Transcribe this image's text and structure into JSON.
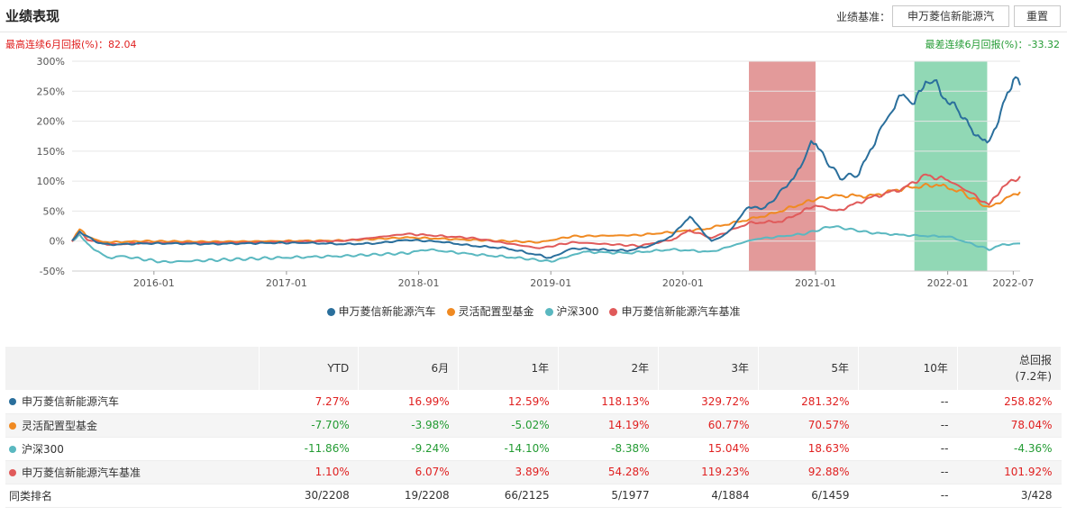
{
  "header": {
    "title": "业绩表现",
    "benchmark_label": "业绩基准：",
    "benchmark_value": "申万菱信新能源汽",
    "reset_label": "重置"
  },
  "stats": {
    "best": "最高连续6月回报(%)：82.04",
    "worst": "最差连续6月回报(%)：-33.32"
  },
  "colors": {
    "fund": "#2a6f9c",
    "flex": "#f08a22",
    "hs300": "#5ab8c0",
    "bench": "#e05a5a",
    "up": "#e02020",
    "down": "#239b33",
    "best_band": "#d97878",
    "worst_band": "#6ccb9c"
  },
  "chart_data": {
    "type": "line",
    "ylim": [
      -50,
      300
    ],
    "yticks": [
      "300%",
      "250%",
      "200%",
      "150%",
      "100%",
      "50%",
      "0%",
      "-50%"
    ],
    "yvalues": [
      300,
      250,
      200,
      150,
      100,
      50,
      0,
      -50
    ],
    "xlim": [
      "2015-05-20",
      "2022-07-20"
    ],
    "xtick_labels": [
      "2016-01",
      "2017-01",
      "2018-01",
      "2019-01",
      "2020-01",
      "2021-01",
      "2022-01",
      "2022-07"
    ],
    "xtick_dates": [
      "2016-01-01",
      "2017-01-01",
      "2018-01-01",
      "2019-01-01",
      "2020-01-01",
      "2021-01-01",
      "2022-01-01",
      "2022-07-01"
    ],
    "highlight_bands": [
      {
        "kind": "best",
        "start": "2020-07-01",
        "end": "2021-01-01"
      },
      {
        "kind": "worst",
        "start": "2021-10-01",
        "end": "2022-04-20"
      }
    ],
    "series": [
      {
        "name": "申万菱信新能源汽车",
        "color_key": "fund",
        "points": [
          [
            "2015-05-20",
            0
          ],
          [
            "2015-06-10",
            15
          ],
          [
            "2015-07-01",
            8
          ],
          [
            "2015-08-01",
            -3
          ],
          [
            "2015-09-01",
            -6
          ],
          [
            "2015-12-01",
            -4
          ],
          [
            "2016-03-01",
            -4
          ],
          [
            "2016-06-01",
            -5
          ],
          [
            "2016-09-01",
            -4
          ],
          [
            "2016-12-01",
            -3
          ],
          [
            "2017-03-01",
            -3
          ],
          [
            "2017-06-01",
            -5
          ],
          [
            "2017-09-01",
            -4
          ],
          [
            "2017-12-01",
            2
          ],
          [
            "2018-03-01",
            -1
          ],
          [
            "2018-06-01",
            -8
          ],
          [
            "2018-09-01",
            -12
          ],
          [
            "2018-11-01",
            -20
          ],
          [
            "2019-01-01",
            -28
          ],
          [
            "2019-03-01",
            -12
          ],
          [
            "2019-05-01",
            -14
          ],
          [
            "2019-08-01",
            -16
          ],
          [
            "2019-10-01",
            -8
          ],
          [
            "2019-12-01",
            8
          ],
          [
            "2020-01-20",
            42
          ],
          [
            "2020-02-15",
            22
          ],
          [
            "2020-03-20",
            0
          ],
          [
            "2020-05-01",
            12
          ],
          [
            "2020-07-01",
            58
          ],
          [
            "2020-08-15",
            55
          ],
          [
            "2020-10-01",
            85
          ],
          [
            "2020-11-20",
            120
          ],
          [
            "2020-12-20",
            168
          ],
          [
            "2021-01-15",
            148
          ],
          [
            "2021-03-10",
            105
          ],
          [
            "2021-05-01",
            112
          ],
          [
            "2021-06-20",
            175
          ],
          [
            "2021-08-01",
            220
          ],
          [
            "2021-09-01",
            245
          ],
          [
            "2021-10-01",
            228
          ],
          [
            "2021-11-01",
            268
          ],
          [
            "2021-12-01",
            262
          ],
          [
            "2022-01-01",
            232
          ],
          [
            "2022-02-01",
            218
          ],
          [
            "2022-03-01",
            192
          ],
          [
            "2022-04-20",
            160
          ],
          [
            "2022-05-15",
            195
          ],
          [
            "2022-06-15",
            245
          ],
          [
            "2022-07-01",
            272
          ],
          [
            "2022-07-20",
            260
          ]
        ]
      },
      {
        "name": "灵活配置型基金",
        "color_key": "flex",
        "points": [
          [
            "2015-05-20",
            0
          ],
          [
            "2015-06-10",
            20
          ],
          [
            "2015-07-01",
            8
          ],
          [
            "2015-08-01",
            0
          ],
          [
            "2015-09-01",
            -2
          ],
          [
            "2015-12-01",
            0
          ],
          [
            "2016-06-01",
            -1
          ],
          [
            "2016-12-01",
            0
          ],
          [
            "2017-06-01",
            1
          ],
          [
            "2017-12-01",
            6
          ],
          [
            "2018-06-01",
            2
          ],
          [
            "2018-12-01",
            -2
          ],
          [
            "2019-03-01",
            8
          ],
          [
            "2019-09-01",
            10
          ],
          [
            "2019-12-01",
            15
          ],
          [
            "2020-03-01",
            20
          ],
          [
            "2020-06-01",
            32
          ],
          [
            "2020-09-01",
            45
          ],
          [
            "2021-01-01",
            70
          ],
          [
            "2021-03-01",
            76
          ],
          [
            "2021-06-01",
            75
          ],
          [
            "2021-09-01",
            88
          ],
          [
            "2021-12-01",
            94
          ],
          [
            "2022-02-01",
            84
          ],
          [
            "2022-04-25",
            55
          ],
          [
            "2022-06-01",
            68
          ],
          [
            "2022-07-20",
            82
          ]
        ]
      },
      {
        "name": "沪深300",
        "color_key": "hs300",
        "points": [
          [
            "2015-05-20",
            0
          ],
          [
            "2015-06-10",
            10
          ],
          [
            "2015-07-01",
            -5
          ],
          [
            "2015-08-25",
            -28
          ],
          [
            "2015-10-01",
            -25
          ],
          [
            "2016-01-28",
            -35
          ],
          [
            "2016-06-01",
            -32
          ],
          [
            "2016-12-01",
            -28
          ],
          [
            "2017-06-01",
            -25
          ],
          [
            "2017-12-01",
            -20
          ],
          [
            "2018-01-25",
            -14
          ],
          [
            "2018-06-01",
            -22
          ],
          [
            "2018-10-01",
            -28
          ],
          [
            "2019-01-03",
            -34
          ],
          [
            "2019-04-01",
            -18
          ],
          [
            "2019-08-01",
            -20
          ],
          [
            "2019-12-01",
            -14
          ],
          [
            "2020-03-20",
            -18
          ],
          [
            "2020-07-15",
            3
          ],
          [
            "2020-12-01",
            12
          ],
          [
            "2021-02-15",
            25
          ],
          [
            "2021-06-01",
            14
          ],
          [
            "2021-09-01",
            10
          ],
          [
            "2021-12-01",
            8
          ],
          [
            "2022-01-01",
            8
          ],
          [
            "2022-03-15",
            -6
          ],
          [
            "2022-04-25",
            -14
          ],
          [
            "2022-06-01",
            -6
          ],
          [
            "2022-07-20",
            -4
          ]
        ]
      },
      {
        "name": "申万菱信新能源汽车基准",
        "color_key": "bench",
        "points": [
          [
            "2015-05-20",
            0
          ],
          [
            "2015-06-10",
            16
          ],
          [
            "2015-07-01",
            2
          ],
          [
            "2015-09-01",
            -6
          ],
          [
            "2015-12-01",
            -3
          ],
          [
            "2016-06-01",
            -3
          ],
          [
            "2016-12-01",
            -2
          ],
          [
            "2017-06-01",
            0
          ],
          [
            "2017-12-01",
            12
          ],
          [
            "2018-06-01",
            5
          ],
          [
            "2018-12-01",
            -12
          ],
          [
            "2019-03-01",
            -2
          ],
          [
            "2019-09-01",
            -8
          ],
          [
            "2019-12-01",
            2
          ],
          [
            "2020-01-20",
            18
          ],
          [
            "2020-03-20",
            5
          ],
          [
            "2020-07-01",
            30
          ],
          [
            "2020-10-01",
            33
          ],
          [
            "2021-01-01",
            60
          ],
          [
            "2021-03-01",
            50
          ],
          [
            "2021-06-01",
            72
          ],
          [
            "2021-09-01",
            88
          ],
          [
            "2021-11-01",
            110
          ],
          [
            "2022-01-01",
            102
          ],
          [
            "2022-03-01",
            82
          ],
          [
            "2022-04-25",
            60
          ],
          [
            "2022-06-01",
            90
          ],
          [
            "2022-07-20",
            108
          ]
        ]
      }
    ]
  },
  "legend": [
    {
      "label": "申万菱信新能源汽车",
      "color_key": "fund"
    },
    {
      "label": "灵活配置型基金",
      "color_key": "flex"
    },
    {
      "label": "沪深300",
      "color_key": "hs300"
    },
    {
      "label": "申万菱信新能源汽车基准",
      "color_key": "bench"
    }
  ],
  "table": {
    "headers": [
      "",
      "YTD",
      "6月",
      "1年",
      "2年",
      "3年",
      "5年",
      "10年",
      "总回报\n(7.2年)"
    ],
    "rows": [
      {
        "name": "申万菱信新能源汽车",
        "color_key": "fund",
        "values": [
          "7.27%",
          "16.99%",
          "12.59%",
          "118.13%",
          "329.72%",
          "281.32%",
          "--",
          "258.82%"
        ]
      },
      {
        "name": "灵活配置型基金",
        "color_key": "flex",
        "values": [
          "-7.70%",
          "-3.98%",
          "-5.02%",
          "14.19%",
          "60.77%",
          "70.57%",
          "--",
          "78.04%"
        ]
      },
      {
        "name": "沪深300",
        "color_key": "hs300",
        "values": [
          "-11.86%",
          "-9.24%",
          "-14.10%",
          "-8.38%",
          "15.04%",
          "18.63%",
          "--",
          "-4.36%"
        ]
      },
      {
        "name": "申万菱信新能源汽车基准",
        "color_key": "bench",
        "values": [
          "1.10%",
          "6.07%",
          "3.89%",
          "54.28%",
          "119.23%",
          "92.88%",
          "--",
          "101.92%"
        ]
      }
    ],
    "rank_row": {
      "name": "同类排名",
      "values": [
        "30/2208",
        "19/2208",
        "66/2125",
        "5/1977",
        "4/1884",
        "6/1459",
        "--",
        "3/428"
      ]
    }
  }
}
